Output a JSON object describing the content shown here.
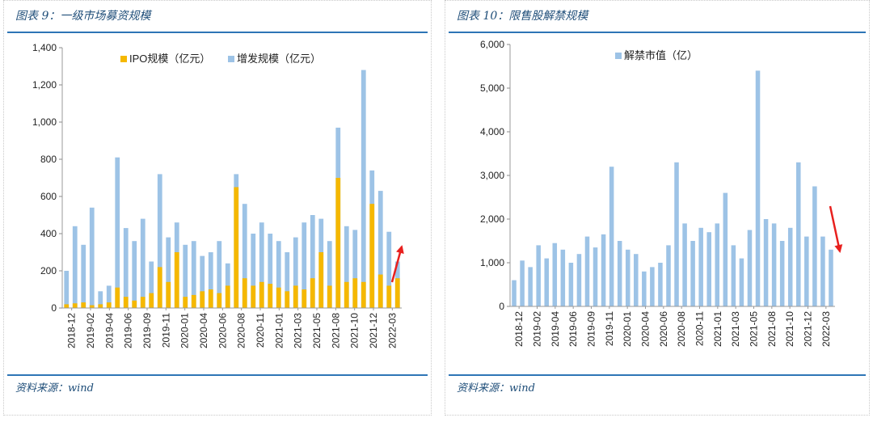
{
  "left_panel": {
    "title": "图表 9：一级市场募资规模",
    "source": "资料来源：wind"
  },
  "right_panel": {
    "title": "图表 10：限售股解禁规模",
    "source": "资料来源：wind"
  },
  "colors": {
    "ipo": "#f5b800",
    "secondary": "#9dc3e6",
    "unlock": "#9dc3e6",
    "arrow": "#e8201e",
    "rule": "#2e75b6"
  },
  "chart_data": [
    {
      "type": "bar",
      "stacked": "overlay",
      "ylim": [
        0,
        1400
      ],
      "yticks": [
        0,
        200,
        400,
        600,
        800,
        1000,
        1200,
        1400
      ],
      "ytick_labels": [
        "0",
        "200",
        "400",
        "600",
        "800",
        "1,000",
        "1,200",
        "1,400"
      ],
      "xtick_labels": [
        "2018-12",
        "2019-02",
        "2019-04",
        "2019-06",
        "2019-09",
        "2019-11",
        "2020-01",
        "2020-04",
        "2020-06",
        "2020-08",
        "2020-11",
        "2021-01",
        "2021-03",
        "2021-05",
        "2021-08",
        "2021-10",
        "2021-12",
        "2022-03"
      ],
      "legend_position": "top-center",
      "categories": [
        "2018-12",
        "2019-01",
        "2019-02",
        "2019-03",
        "2019-04",
        "2019-05",
        "2019-06",
        "2019-07",
        "2019-08",
        "2019-09",
        "2019-10",
        "2019-11",
        "2019-12",
        "2020-01",
        "2020-02",
        "2020-03",
        "2020-04",
        "2020-05",
        "2020-06",
        "2020-07",
        "2020-08",
        "2020-09",
        "2020-10",
        "2020-11",
        "2020-12",
        "2021-01",
        "2021-02",
        "2021-03",
        "2021-04",
        "2021-05",
        "2021-06",
        "2021-07",
        "2021-08",
        "2021-09",
        "2021-10",
        "2021-11",
        "2021-12",
        "2022-01",
        "2022-02",
        "2022-03"
      ],
      "series": [
        {
          "name": "IPO规模（亿元）",
          "color": "#f5b800",
          "values": [
            20,
            25,
            30,
            15,
            20,
            30,
            110,
            60,
            40,
            60,
            80,
            220,
            140,
            300,
            60,
            70,
            90,
            100,
            80,
            120,
            650,
            160,
            120,
            140,
            130,
            110,
            90,
            120,
            100,
            160,
            300,
            120,
            700,
            140,
            160,
            140,
            560,
            180,
            120,
            160
          ]
        },
        {
          "name": "增发规模（亿元）",
          "color": "#9dc3e6",
          "values": [
            200,
            440,
            340,
            540,
            90,
            120,
            810,
            430,
            360,
            480,
            250,
            720,
            380,
            460,
            340,
            360,
            280,
            300,
            360,
            240,
            720,
            560,
            400,
            460,
            400,
            360,
            300,
            380,
            460,
            500,
            480,
            360,
            970,
            440,
            420,
            1280,
            740,
            630,
            410,
            250
          ]
        }
      ],
      "arrow": {
        "direction": "up"
      }
    },
    {
      "type": "bar",
      "ylim": [
        0,
        6000
      ],
      "yticks": [
        0,
        1000,
        2000,
        3000,
        4000,
        5000,
        6000
      ],
      "ytick_labels": [
        "0",
        "1,000",
        "2,000",
        "3,000",
        "4,000",
        "5,000",
        "6,000"
      ],
      "xtick_labels": [
        "2018-12",
        "2019-02",
        "2019-04",
        "2019-06",
        "2019-09",
        "2019-11",
        "2020-01",
        "2020-04",
        "2020-06",
        "2020-08",
        "2020-11",
        "2021-01",
        "2021-03",
        "2021-05",
        "2021-08",
        "2021-10",
        "2021-12",
        "2022-03"
      ],
      "legend_position": "top-center",
      "categories": [
        "2018-12",
        "2019-01",
        "2019-02",
        "2019-03",
        "2019-04",
        "2019-05",
        "2019-06",
        "2019-07",
        "2019-08",
        "2019-09",
        "2019-10",
        "2019-11",
        "2019-12",
        "2020-01",
        "2020-02",
        "2020-03",
        "2020-04",
        "2020-05",
        "2020-06",
        "2020-07",
        "2020-08",
        "2020-09",
        "2020-10",
        "2020-11",
        "2020-12",
        "2021-01",
        "2021-02",
        "2021-03",
        "2021-04",
        "2021-05",
        "2021-06",
        "2021-07",
        "2021-08",
        "2021-09",
        "2021-10",
        "2021-11",
        "2021-12",
        "2022-01",
        "2022-02",
        "2022-03"
      ],
      "series": [
        {
          "name": "解禁市值（亿）",
          "color": "#9dc3e6",
          "values": [
            600,
            1050,
            900,
            1400,
            1100,
            1450,
            1300,
            1000,
            1200,
            1600,
            1350,
            1650,
            3200,
            1500,
            1300,
            1200,
            800,
            900,
            1000,
            1400,
            3300,
            1900,
            1500,
            1800,
            1700,
            1900,
            2600,
            1400,
            1100,
            1750,
            5400,
            2000,
            1900,
            1500,
            1800,
            3300,
            1600,
            2750,
            1600,
            1300
          ]
        }
      ],
      "arrow": {
        "direction": "down"
      }
    }
  ]
}
